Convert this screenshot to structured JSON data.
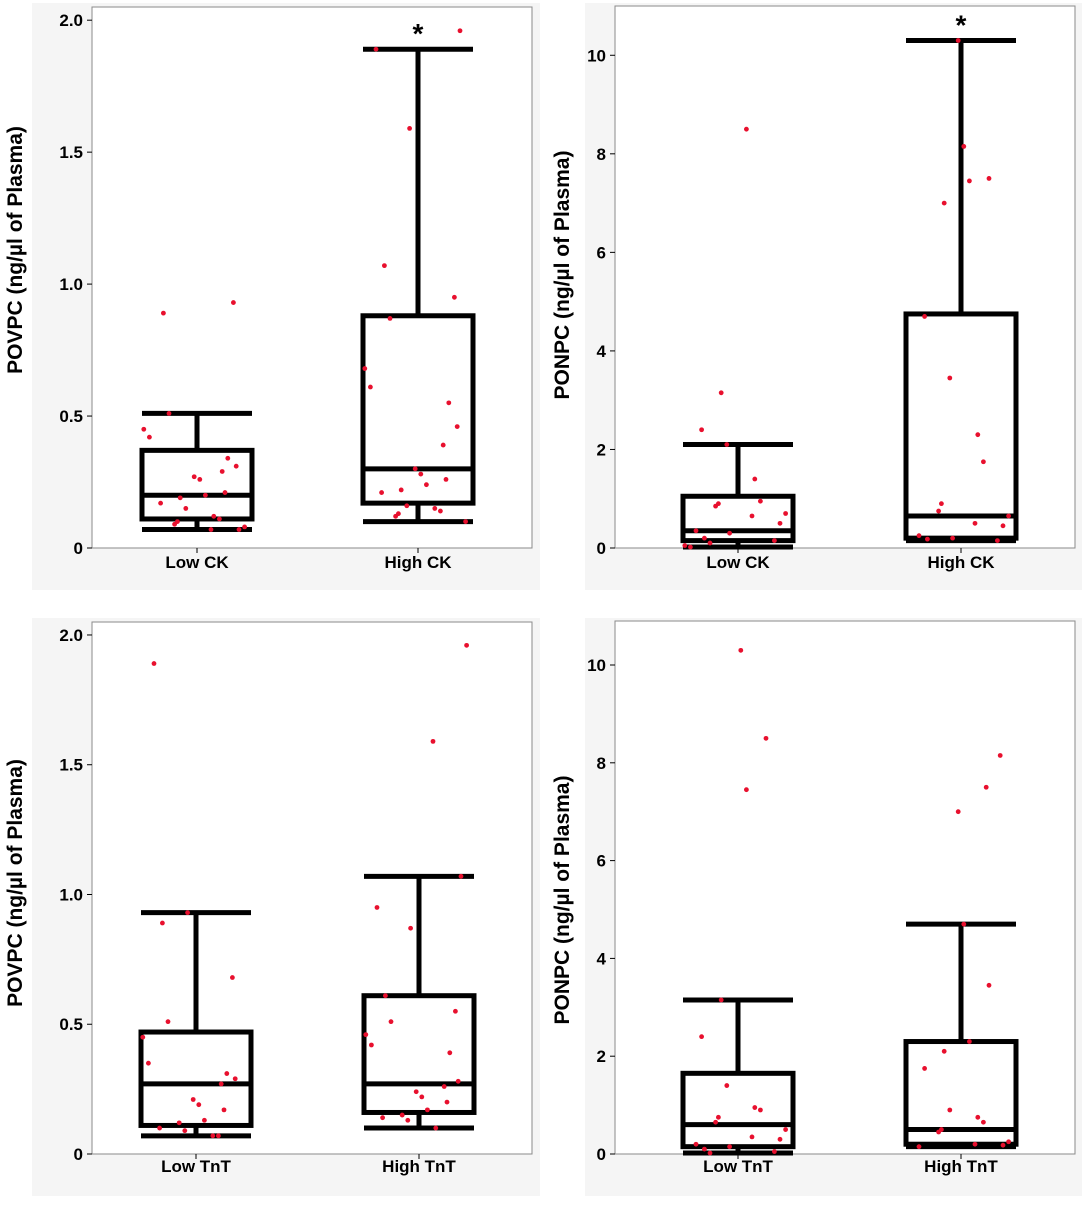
{
  "chart_data": [
    {
      "type": "box",
      "ylabel": "POVPC (ng/µl of Plasma)",
      "ylim": [
        0,
        2.05
      ],
      "yticks": [
        "0",
        "0.5",
        "1.0",
        "1.5",
        "2.0"
      ],
      "yticks_values": [
        0,
        0.5,
        1.0,
        1.5,
        2.0
      ],
      "categories": [
        "Low CK",
        "High CK"
      ],
      "boxes": [
        {
          "min": 0.07,
          "q1": 0.11,
          "median": 0.2,
          "q3": 0.37,
          "max": 0.51,
          "annotation": "",
          "points": [
            0.89,
            0.93,
            0.51,
            0.45,
            0.42,
            0.34,
            0.31,
            0.29,
            0.27,
            0.26,
            0.21,
            0.2,
            0.19,
            0.17,
            0.15,
            0.12,
            0.11,
            0.1,
            0.09,
            0.08,
            0.07,
            0.07
          ]
        },
        {
          "min": 0.1,
          "q1": 0.17,
          "median": 0.3,
          "q3": 0.88,
          "max": 1.89,
          "annotation": "*",
          "points": [
            1.96,
            1.89,
            1.59,
            1.07,
            0.95,
            0.87,
            0.68,
            0.61,
            0.55,
            0.46,
            0.39,
            0.3,
            0.28,
            0.26,
            0.24,
            0.22,
            0.21,
            0.16,
            0.15,
            0.14,
            0.13,
            0.12,
            0.1
          ]
        }
      ]
    },
    {
      "type": "box",
      "ylabel": "PONPC (ng/µl of Plasma)",
      "ylim": [
        0,
        11
      ],
      "yticks": [
        "0",
        "2",
        "4",
        "6",
        "8",
        "10"
      ],
      "yticks_values": [
        0,
        2,
        4,
        6,
        8,
        10
      ],
      "categories": [
        "Low CK",
        "High CK"
      ],
      "boxes": [
        {
          "min": 0.02,
          "q1": 0.15,
          "median": 0.35,
          "q3": 1.05,
          "max": 2.1,
          "annotation": "",
          "points": [
            8.5,
            3.15,
            2.4,
            2.1,
            1.4,
            0.95,
            0.9,
            0.85,
            0.7,
            0.65,
            0.5,
            0.35,
            0.3,
            0.2,
            0.15,
            0.1,
            0.05,
            0.02
          ]
        },
        {
          "min": 0.15,
          "q1": 0.2,
          "median": 0.65,
          "q3": 4.75,
          "max": 10.3,
          "annotation": "*",
          "points": [
            10.3,
            8.15,
            7.5,
            7.45,
            7.0,
            4.7,
            3.45,
            2.3,
            1.75,
            0.9,
            0.75,
            0.65,
            0.5,
            0.45,
            0.25,
            0.2,
            0.18,
            0.15
          ]
        }
      ]
    },
    {
      "type": "box",
      "ylabel": "POVPC (ng/µl of Plasma)",
      "ylim": [
        0,
        2.05
      ],
      "yticks": [
        "0",
        "0.5",
        "1.0",
        "1.5",
        "2.0"
      ],
      "yticks_values": [
        0,
        0.5,
        1.0,
        1.5,
        2.0
      ],
      "categories": [
        "Low TnT",
        "High TnT"
      ],
      "boxes": [
        {
          "min": 0.07,
          "q1": 0.11,
          "median": 0.27,
          "q3": 0.47,
          "max": 0.93,
          "annotation": "",
          "points": [
            1.89,
            0.93,
            0.89,
            0.68,
            0.51,
            0.45,
            0.35,
            0.31,
            0.29,
            0.27,
            0.21,
            0.19,
            0.17,
            0.13,
            0.12,
            0.1,
            0.09,
            0.07,
            0.07
          ]
        },
        {
          "min": 0.1,
          "q1": 0.16,
          "median": 0.27,
          "q3": 0.61,
          "max": 1.07,
          "annotation": "",
          "points": [
            1.96,
            1.59,
            1.07,
            0.95,
            0.87,
            0.61,
            0.55,
            0.51,
            0.46,
            0.42,
            0.39,
            0.28,
            0.26,
            0.24,
            0.22,
            0.2,
            0.17,
            0.15,
            0.14,
            0.13,
            0.1
          ]
        }
      ]
    },
    {
      "type": "box",
      "ylabel": "PONPC (ng/µl of Plasma)",
      "ylim": [
        0,
        10.9
      ],
      "yticks": [
        "0",
        "2",
        "4",
        "6",
        "8",
        "10"
      ],
      "yticks_values": [
        0,
        2,
        4,
        6,
        8,
        10
      ],
      "categories": [
        "Low TnT",
        "High TnT"
      ],
      "boxes": [
        {
          "min": 0.02,
          "q1": 0.15,
          "median": 0.6,
          "q3": 1.65,
          "max": 3.15,
          "annotation": "",
          "points": [
            10.3,
            8.5,
            7.45,
            3.15,
            2.4,
            1.4,
            0.95,
            0.9,
            0.75,
            0.65,
            0.5,
            0.35,
            0.3,
            0.2,
            0.15,
            0.1,
            0.05,
            0.02
          ]
        },
        {
          "min": 0.15,
          "q1": 0.2,
          "median": 0.5,
          "q3": 2.3,
          "max": 4.7,
          "annotation": "",
          "points": [
            8.15,
            7.5,
            7.0,
            4.7,
            3.45,
            2.3,
            2.1,
            1.75,
            0.9,
            0.75,
            0.65,
            0.5,
            0.45,
            0.25,
            0.2,
            0.18,
            0.15
          ]
        }
      ]
    }
  ]
}
